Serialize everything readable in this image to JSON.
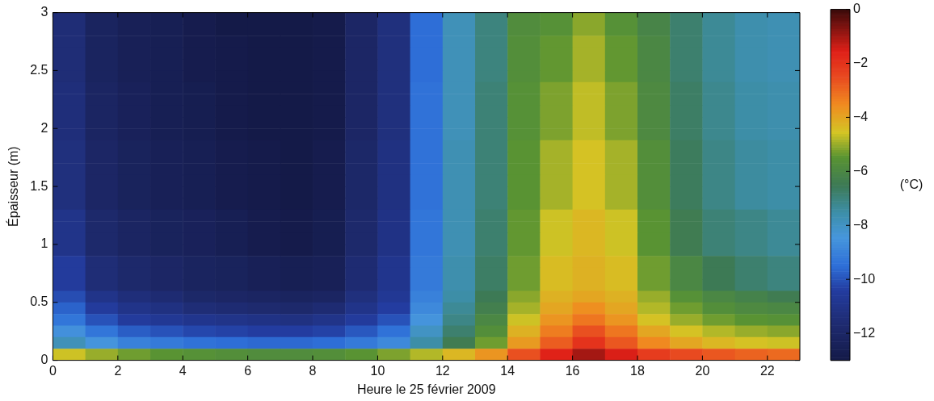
{
  "chart_data": {
    "type": "heatmap",
    "xlabel": "Heure le 25 février 2009",
    "ylabel": "Épaisseur (m)",
    "clabel": "(°C)",
    "xlim": [
      0,
      23
    ],
    "xticks": [
      0,
      2,
      4,
      6,
      8,
      10,
      12,
      14,
      16,
      18,
      20,
      22
    ],
    "ylim": [
      0,
      3
    ],
    "yticks": [
      0,
      0.5,
      1,
      1.5,
      2,
      2.5,
      3
    ],
    "clim": [
      -13,
      0
    ],
    "cticks": [
      -12,
      -10,
      -8,
      -6,
      -4,
      -2,
      0
    ],
    "cells": [
      [
        -11.5,
        -12.2,
        -12.5,
        -12.6,
        -12.8,
        -13.0,
        -13.0,
        -13.0,
        -12.9,
        -12.0,
        -11.3,
        -9.5,
        -7.8,
        -7.0,
        -5.8,
        -5.6,
        -5.1,
        -5.6,
        -6.1,
        -6.8,
        -7.3,
        -7.6,
        -7.7
      ],
      [
        -11.5,
        -12.2,
        -12.5,
        -12.6,
        -12.8,
        -13.0,
        -13.0,
        -13.0,
        -12.9,
        -12.0,
        -11.3,
        -9.5,
        -7.8,
        -7.0,
        -5.8,
        -5.6,
        -5.1,
        -5.6,
        -6.1,
        -6.8,
        -7.3,
        -7.6,
        -7.7
      ],
      [
        -11.5,
        -12.2,
        -12.5,
        -12.6,
        -12.8,
        -12.9,
        -13.0,
        -13.0,
        -12.9,
        -12.0,
        -11.3,
        -9.5,
        -7.8,
        -7.0,
        -5.7,
        -5.4,
        -4.9,
        -5.4,
        -6.0,
        -6.8,
        -7.3,
        -7.6,
        -7.7
      ],
      [
        -11.5,
        -12.2,
        -12.5,
        -12.6,
        -12.8,
        -12.9,
        -13.0,
        -13.0,
        -12.9,
        -12.0,
        -11.3,
        -9.5,
        -7.8,
        -7.0,
        -5.7,
        -5.4,
        -4.9,
        -5.4,
        -6.0,
        -6.8,
        -7.3,
        -7.6,
        -7.7
      ],
      [
        -11.5,
        -12.2,
        -12.5,
        -12.6,
        -12.8,
        -12.9,
        -13.0,
        -13.0,
        -12.9,
        -12.0,
        -11.3,
        -9.5,
        -7.8,
        -7.0,
        -5.7,
        -5.4,
        -4.9,
        -5.4,
        -6.0,
        -6.8,
        -7.3,
        -7.6,
        -7.7
      ],
      [
        -11.5,
        -12.2,
        -12.5,
        -12.6,
        -12.8,
        -12.9,
        -13.0,
        -13.0,
        -12.9,
        -12.0,
        -11.3,
        -9.5,
        -7.8,
        -7.0,
        -5.7,
        -5.4,
        -4.9,
        -5.4,
        -6.0,
        -6.8,
        -7.3,
        -7.6,
        -7.7
      ],
      [
        -11.4,
        -12.1,
        -12.4,
        -12.6,
        -12.7,
        -12.9,
        -13.0,
        -13.0,
        -12.9,
        -12.0,
        -11.3,
        -9.4,
        -7.8,
        -6.9,
        -5.6,
        -5.2,
        -4.7,
        -5.2,
        -5.9,
        -6.7,
        -7.2,
        -7.5,
        -7.6
      ],
      [
        -11.4,
        -12.1,
        -12.4,
        -12.6,
        -12.7,
        -12.9,
        -13.0,
        -13.0,
        -12.9,
        -12.0,
        -11.3,
        -9.4,
        -7.8,
        -6.9,
        -5.6,
        -5.2,
        -4.7,
        -5.2,
        -5.9,
        -6.7,
        -7.2,
        -7.5,
        -7.6
      ],
      [
        -11.4,
        -12.1,
        -12.4,
        -12.6,
        -12.7,
        -12.9,
        -13.0,
        -13.0,
        -12.9,
        -12.0,
        -11.3,
        -9.4,
        -7.8,
        -6.9,
        -5.6,
        -5.2,
        -4.7,
        -5.2,
        -5.9,
        -6.7,
        -7.2,
        -7.5,
        -7.6
      ],
      [
        -11.4,
        -12.1,
        -12.4,
        -12.6,
        -12.7,
        -12.9,
        -13.0,
        -13.0,
        -12.9,
        -12.0,
        -11.3,
        -9.4,
        -7.8,
        -6.9,
        -5.6,
        -5.2,
        -4.7,
        -5.2,
        -5.9,
        -6.7,
        -7.2,
        -7.5,
        -7.6
      ],
      [
        -11.4,
        -12.1,
        -12.4,
        -12.6,
        -12.7,
        -12.9,
        -13.0,
        -13.0,
        -12.9,
        -12.0,
        -11.3,
        -9.4,
        -7.8,
        -6.9,
        -5.6,
        -5.2,
        -4.7,
        -5.2,
        -5.9,
        -6.7,
        -7.2,
        -7.5,
        -7.6
      ],
      [
        -11.3,
        -12.0,
        -12.3,
        -12.5,
        -12.6,
        -12.8,
        -12.9,
        -13.0,
        -12.8,
        -11.9,
        -11.2,
        -9.4,
        -7.7,
        -6.9,
        -5.5,
        -4.9,
        -4.5,
        -4.9,
        -5.7,
        -6.6,
        -7.1,
        -7.4,
        -7.5
      ],
      [
        -11.3,
        -12.0,
        -12.3,
        -12.5,
        -12.6,
        -12.8,
        -12.9,
        -13.0,
        -12.8,
        -11.9,
        -11.2,
        -9.4,
        -7.7,
        -6.9,
        -5.5,
        -4.9,
        -4.5,
        -4.9,
        -5.7,
        -6.6,
        -7.1,
        -7.4,
        -7.5
      ],
      [
        -11.3,
        -12.0,
        -12.3,
        -12.5,
        -12.6,
        -12.8,
        -12.9,
        -13.0,
        -12.8,
        -11.9,
        -11.2,
        -9.4,
        -7.7,
        -6.9,
        -5.5,
        -4.9,
        -4.5,
        -4.9,
        -5.7,
        -6.6,
        -7.1,
        -7.4,
        -7.5
      ],
      [
        -11.3,
        -12.0,
        -12.3,
        -12.5,
        -12.6,
        -12.8,
        -12.9,
        -13.0,
        -12.8,
        -11.9,
        -11.2,
        -9.4,
        -7.7,
        -6.9,
        -5.5,
        -4.9,
        -4.5,
        -4.9,
        -5.7,
        -6.6,
        -7.1,
        -7.4,
        -7.5
      ],
      [
        -11.3,
        -12.0,
        -12.3,
        -12.5,
        -12.6,
        -12.8,
        -12.9,
        -13.0,
        -12.8,
        -11.9,
        -11.2,
        -9.4,
        -7.7,
        -6.9,
        -5.5,
        -4.9,
        -4.5,
        -4.9,
        -5.7,
        -6.6,
        -7.1,
        -7.4,
        -7.5
      ],
      [
        -11.3,
        -12.0,
        -12.3,
        -12.5,
        -12.6,
        -12.8,
        -12.9,
        -13.0,
        -12.8,
        -11.9,
        -11.2,
        -9.4,
        -7.7,
        -6.9,
        -5.5,
        -4.9,
        -4.5,
        -4.9,
        -5.7,
        -6.6,
        -7.1,
        -7.4,
        -7.5
      ],
      [
        -11.0,
        -11.8,
        -12.1,
        -12.3,
        -12.4,
        -12.6,
        -12.8,
        -12.9,
        -12.7,
        -11.8,
        -11.1,
        -9.3,
        -7.7,
        -6.8,
        -5.4,
        -4.6,
        -4.3,
        -4.6,
        -5.5,
        -6.4,
        -6.9,
        -7.1,
        -7.3
      ],
      [
        -11.0,
        -11.8,
        -12.1,
        -12.3,
        -12.4,
        -12.6,
        -12.8,
        -12.9,
        -12.7,
        -11.8,
        -11.1,
        -9.3,
        -7.7,
        -6.8,
        -5.4,
        -4.6,
        -4.3,
        -4.6,
        -5.5,
        -6.4,
        -6.9,
        -7.1,
        -7.3
      ],
      [
        -11.0,
        -11.8,
        -12.1,
        -12.3,
        -12.4,
        -12.6,
        -12.8,
        -12.9,
        -12.7,
        -11.8,
        -11.1,
        -9.3,
        -7.7,
        -6.8,
        -5.4,
        -4.6,
        -4.3,
        -4.6,
        -5.5,
        -6.4,
        -6.9,
        -7.1,
        -7.3
      ],
      [
        -11.0,
        -11.8,
        -12.1,
        -12.3,
        -12.4,
        -12.6,
        -12.8,
        -12.9,
        -12.7,
        -11.8,
        -11.1,
        -9.3,
        -7.7,
        -6.8,
        -5.4,
        -4.6,
        -4.3,
        -4.6,
        -5.5,
        -6.4,
        -6.9,
        -7.1,
        -7.3
      ],
      [
        -10.5,
        -11.5,
        -11.8,
        -12.0,
        -12.2,
        -12.3,
        -12.5,
        -12.6,
        -12.5,
        -11.6,
        -10.9,
        -9.2,
        -7.6,
        -6.7,
        -5.3,
        -4.4,
        -4.2,
        -4.4,
        -5.3,
        -6.0,
        -6.5,
        -6.8,
        -7.0
      ],
      [
        -10.5,
        -11.5,
        -11.8,
        -12.0,
        -12.2,
        -12.3,
        -12.5,
        -12.6,
        -12.5,
        -11.6,
        -10.9,
        -9.2,
        -7.6,
        -6.7,
        -5.3,
        -4.4,
        -4.2,
        -4.4,
        -5.3,
        -6.0,
        -6.5,
        -6.8,
        -7.0
      ],
      [
        -10.5,
        -11.5,
        -11.8,
        -12.0,
        -12.2,
        -12.3,
        -12.5,
        -12.6,
        -12.5,
        -11.6,
        -10.9,
        -9.2,
        -7.6,
        -6.7,
        -5.3,
        -4.4,
        -4.2,
        -4.4,
        -5.3,
        -6.0,
        -6.5,
        -6.8,
        -7.0
      ],
      [
        -10.1,
        -11.0,
        -11.4,
        -11.6,
        -11.9,
        -12.0,
        -12.1,
        -12.2,
        -12.1,
        -11.3,
        -10.7,
        -9.0,
        -7.5,
        -6.5,
        -5.1,
        -4.2,
        -4.0,
        -4.2,
        -5.0,
        -5.6,
        -6.0,
        -6.2,
        -6.4
      ],
      [
        -9.7,
        -10.5,
        -11.0,
        -11.2,
        -11.5,
        -11.6,
        -11.7,
        -11.8,
        -11.6,
        -11.0,
        -10.4,
        -8.8,
        -7.3,
        -6.3,
        -4.9,
        -4.0,
        -3.6,
        -4.0,
        -4.8,
        -5.3,
        -5.7,
        -5.9,
        -6.0
      ],
      [
        -9.3,
        -10.0,
        -10.5,
        -10.7,
        -10.9,
        -11.0,
        -11.1,
        -11.2,
        -11.0,
        -10.5,
        -10.0,
        -8.5,
        -7.1,
        -6.0,
        -4.6,
        -3.7,
        -3.2,
        -3.7,
        -4.5,
        -5.0,
        -5.3,
        -5.5,
        -5.6
      ],
      [
        -8.6,
        -9.3,
        -9.8,
        -10.0,
        -10.2,
        -10.3,
        -10.4,
        -10.4,
        -10.3,
        -9.9,
        -9.4,
        -8.0,
        -6.8,
        -5.7,
        -4.2,
        -3.3,
        -2.6,
        -3.2,
        -4.0,
        -4.5,
        -4.8,
        -5.0,
        -5.1
      ],
      [
        -7.8,
        -8.5,
        -9.0,
        -9.2,
        -9.4,
        -9.5,
        -9.6,
        -9.6,
        -9.5,
        -9.2,
        -8.8,
        -7.5,
        -6.4,
        -5.3,
        -3.8,
        -2.8,
        -2.0,
        -2.7,
        -3.5,
        -4.0,
        -4.3,
        -4.5,
        -4.6
      ],
      [
        -4.6,
        -5.0,
        -5.3,
        -5.5,
        -5.6,
        -5.7,
        -5.8,
        -5.8,
        -5.7,
        -5.5,
        -5.2,
        -4.8,
        -4.3,
        -3.7,
        -2.6,
        -1.6,
        -1.0,
        -1.5,
        -2.2,
        -2.5,
        -2.7,
        -2.9,
        -3.0
      ]
    ]
  }
}
